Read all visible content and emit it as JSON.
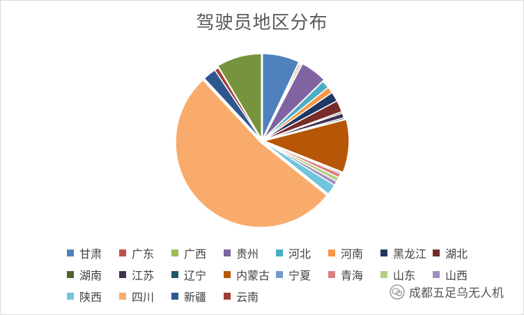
{
  "chart_data": {
    "type": "pie",
    "title": "驾驶员地区分布",
    "legend_position": "bottom",
    "slices": [
      {
        "label": "甘肃",
        "value": 7.0,
        "color": "#4f81bd"
      },
      {
        "label": "广东",
        "value": 0.3,
        "color": "#c0504d"
      },
      {
        "label": "广西",
        "value": 0.3,
        "color": "#9bbb59"
      },
      {
        "label": "贵州",
        "value": 5.0,
        "color": "#8064a2"
      },
      {
        "label": "河北",
        "value": 1.5,
        "color": "#4bacc6"
      },
      {
        "label": "河南",
        "value": 1.2,
        "color": "#f79646"
      },
      {
        "label": "黑龙江",
        "value": 1.8,
        "color": "#1f3864"
      },
      {
        "label": "湖北",
        "value": 2.2,
        "color": "#772c2a"
      },
      {
        "label": "湖南",
        "value": 0.3,
        "color": "#4f6228"
      },
      {
        "label": "江苏",
        "value": 0.9,
        "color": "#3f3151"
      },
      {
        "label": "辽宁",
        "value": 0.3,
        "color": "#215967"
      },
      {
        "label": "内蒙古",
        "value": 10.0,
        "color": "#b65708"
      },
      {
        "label": "宁夏",
        "value": 0.3,
        "color": "#729aca"
      },
      {
        "label": "青海",
        "value": 0.8,
        "color": "#d9817e"
      },
      {
        "label": "山东",
        "value": 0.8,
        "color": "#b3ce83"
      },
      {
        "label": "山西",
        "value": 0.8,
        "color": "#a18fbd"
      },
      {
        "label": "陕西",
        "value": 2.0,
        "color": "#70c5dc"
      },
      {
        "label": "四川",
        "value": 52.0,
        "color": "#f9ab6b"
      },
      {
        "label": "新疆",
        "value": 2.5,
        "color": "#2e578f"
      },
      {
        "label": "云南",
        "value": 0.8,
        "color": "#a33b37"
      },
      {
        "label": "",
        "value": 8.5,
        "color": "#77933c"
      }
    ]
  },
  "watermark": {
    "text": "成都五足乌无人机",
    "icon": "wechat-icon"
  }
}
